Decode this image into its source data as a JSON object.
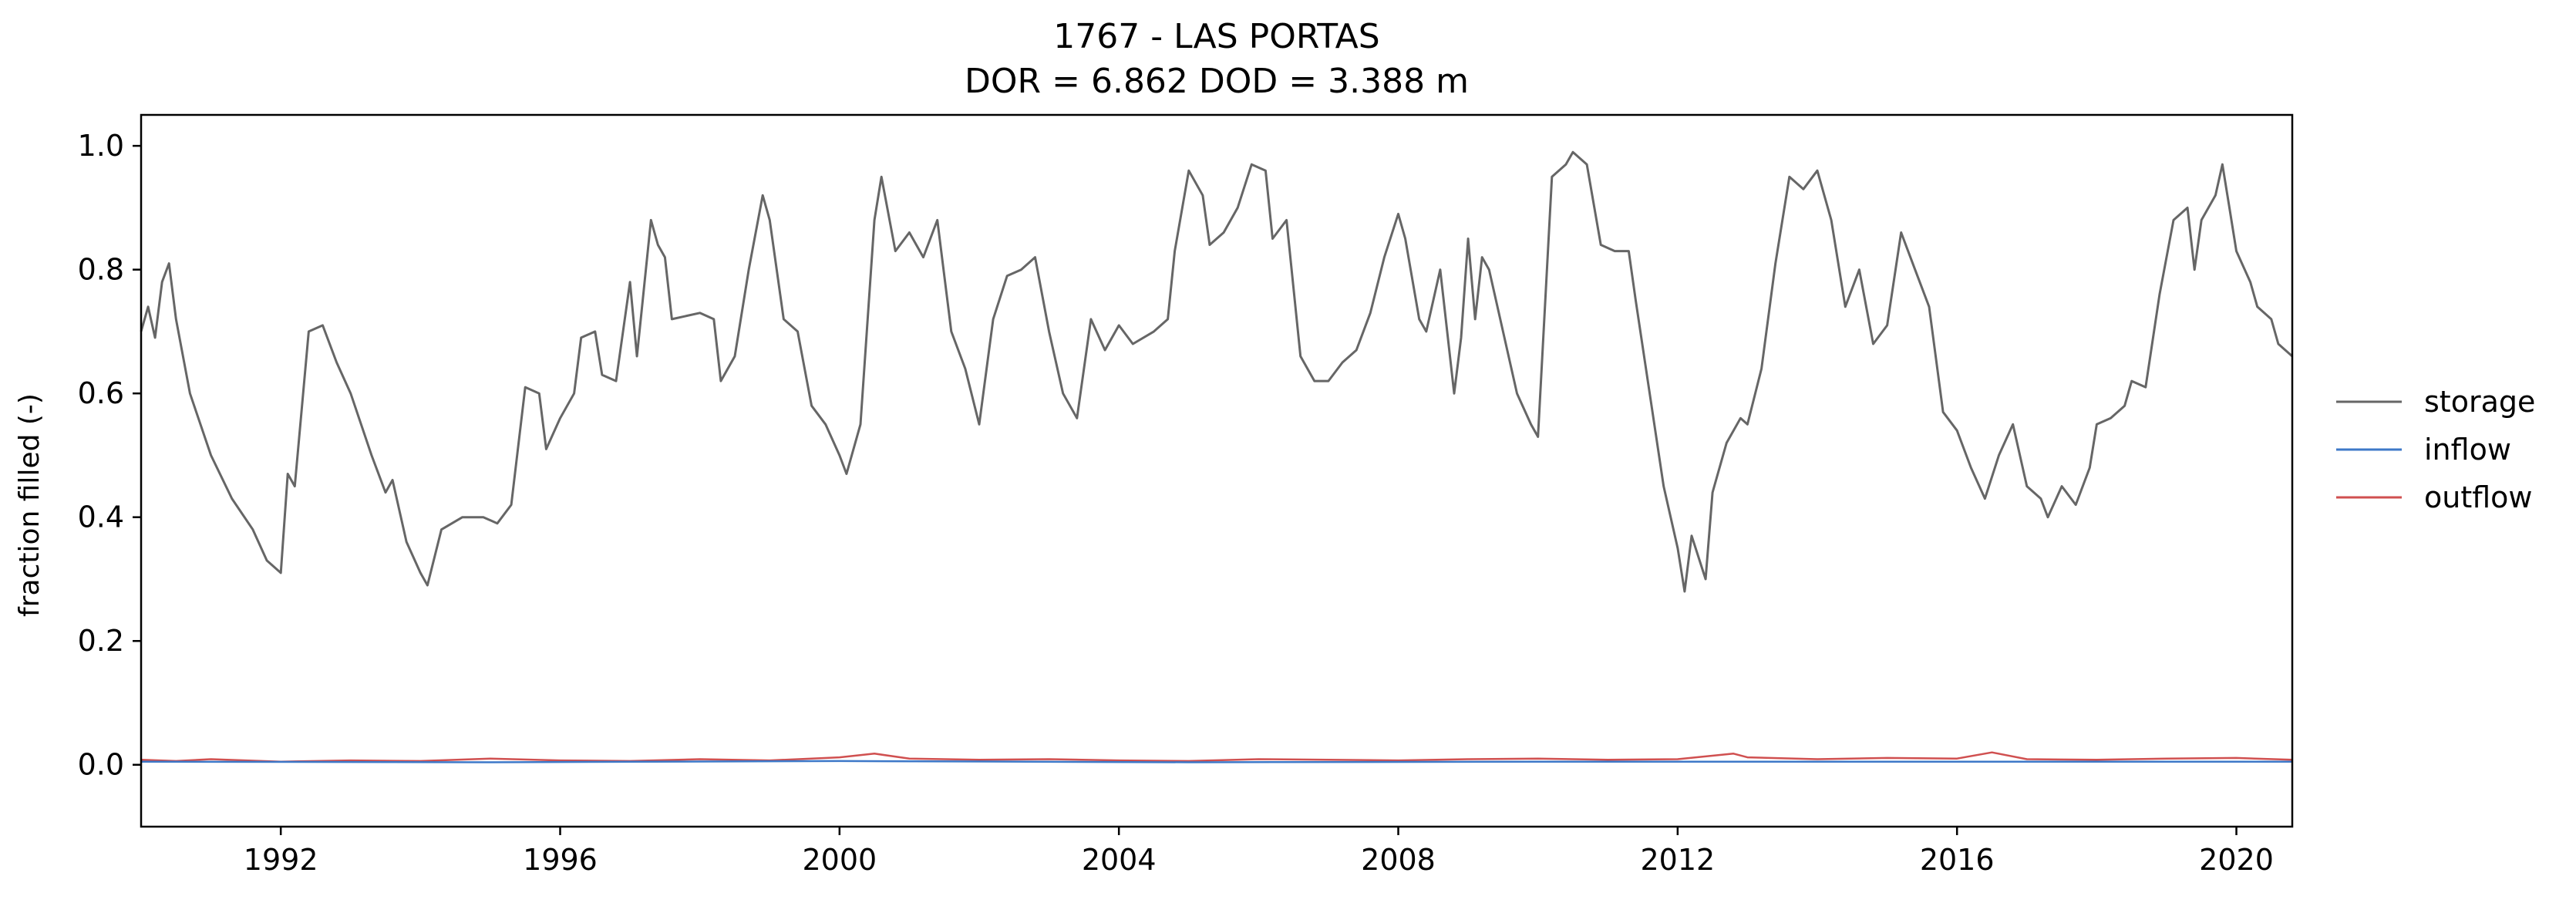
{
  "chart_data": {
    "type": "line",
    "title": "1767 - LAS PORTAS",
    "subtitle": "DOR = 6.862  DOD = 3.388 m",
    "ylabel": "fraction filled (-)",
    "xlabel": "",
    "xlim": [
      1990.0,
      2020.8
    ],
    "ylim": [
      -0.1,
      1.05
    ],
    "x_ticks": [
      "1992",
      "1996",
      "2000",
      "2004",
      "2008",
      "2012",
      "2016",
      "2020"
    ],
    "y_ticks": [
      "0.0",
      "0.2",
      "0.4",
      "0.6",
      "0.8",
      "1.0"
    ],
    "grid": false,
    "legend_position": "right",
    "series": [
      {
        "name": "storage",
        "color": "#666666",
        "points": [
          [
            1990.0,
            0.7
          ],
          [
            1990.1,
            0.74
          ],
          [
            1990.2,
            0.69
          ],
          [
            1990.3,
            0.78
          ],
          [
            1990.4,
            0.81
          ],
          [
            1990.5,
            0.72
          ],
          [
            1990.7,
            0.6
          ],
          [
            1991.0,
            0.5
          ],
          [
            1991.3,
            0.43
          ],
          [
            1991.6,
            0.38
          ],
          [
            1991.8,
            0.33
          ],
          [
            1992.0,
            0.31
          ],
          [
            1992.1,
            0.47
          ],
          [
            1992.2,
            0.45
          ],
          [
            1992.4,
            0.7
          ],
          [
            1992.6,
            0.71
          ],
          [
            1992.8,
            0.65
          ],
          [
            1993.0,
            0.6
          ],
          [
            1993.3,
            0.5
          ],
          [
            1993.5,
            0.44
          ],
          [
            1993.6,
            0.46
          ],
          [
            1993.8,
            0.36
          ],
          [
            1994.0,
            0.31
          ],
          [
            1994.1,
            0.29
          ],
          [
            1994.3,
            0.38
          ],
          [
            1994.6,
            0.4
          ],
          [
            1994.9,
            0.4
          ],
          [
            1995.1,
            0.39
          ],
          [
            1995.3,
            0.42
          ],
          [
            1995.5,
            0.61
          ],
          [
            1995.7,
            0.6
          ],
          [
            1995.8,
            0.51
          ],
          [
            1996.0,
            0.56
          ],
          [
            1996.2,
            0.6
          ],
          [
            1996.3,
            0.69
          ],
          [
            1996.5,
            0.7
          ],
          [
            1996.6,
            0.63
          ],
          [
            1996.8,
            0.62
          ],
          [
            1997.0,
            0.78
          ],
          [
            1997.1,
            0.66
          ],
          [
            1997.3,
            0.88
          ],
          [
            1997.4,
            0.84
          ],
          [
            1997.5,
            0.82
          ],
          [
            1997.6,
            0.72
          ],
          [
            1998.0,
            0.73
          ],
          [
            1998.2,
            0.72
          ],
          [
            1998.3,
            0.62
          ],
          [
            1998.5,
            0.66
          ],
          [
            1998.7,
            0.8
          ],
          [
            1998.9,
            0.92
          ],
          [
            1999.0,
            0.88
          ],
          [
            1999.2,
            0.72
          ],
          [
            1999.4,
            0.7
          ],
          [
            1999.6,
            0.58
          ],
          [
            1999.8,
            0.55
          ],
          [
            2000.0,
            0.5
          ],
          [
            2000.1,
            0.47
          ],
          [
            2000.3,
            0.55
          ],
          [
            2000.5,
            0.88
          ],
          [
            2000.6,
            0.95
          ],
          [
            2000.8,
            0.83
          ],
          [
            2001.0,
            0.86
          ],
          [
            2001.2,
            0.82
          ],
          [
            2001.4,
            0.88
          ],
          [
            2001.6,
            0.7
          ],
          [
            2001.8,
            0.64
          ],
          [
            2002.0,
            0.55
          ],
          [
            2002.2,
            0.72
          ],
          [
            2002.4,
            0.79
          ],
          [
            2002.6,
            0.8
          ],
          [
            2002.8,
            0.82
          ],
          [
            2003.0,
            0.7
          ],
          [
            2003.2,
            0.6
          ],
          [
            2003.4,
            0.56
          ],
          [
            2003.6,
            0.72
          ],
          [
            2003.8,
            0.67
          ],
          [
            2004.0,
            0.71
          ],
          [
            2004.2,
            0.68
          ],
          [
            2004.5,
            0.7
          ],
          [
            2004.7,
            0.72
          ],
          [
            2004.8,
            0.83
          ],
          [
            2005.0,
            0.96
          ],
          [
            2005.2,
            0.92
          ],
          [
            2005.3,
            0.84
          ],
          [
            2005.5,
            0.86
          ],
          [
            2005.7,
            0.9
          ],
          [
            2005.9,
            0.97
          ],
          [
            2006.1,
            0.96
          ],
          [
            2006.2,
            0.85
          ],
          [
            2006.4,
            0.88
          ],
          [
            2006.6,
            0.66
          ],
          [
            2006.8,
            0.62
          ],
          [
            2007.0,
            0.62
          ],
          [
            2007.2,
            0.65
          ],
          [
            2007.4,
            0.67
          ],
          [
            2007.6,
            0.73
          ],
          [
            2007.8,
            0.82
          ],
          [
            2008.0,
            0.89
          ],
          [
            2008.1,
            0.85
          ],
          [
            2008.3,
            0.72
          ],
          [
            2008.4,
            0.7
          ],
          [
            2008.6,
            0.8
          ],
          [
            2008.8,
            0.6
          ],
          [
            2008.9,
            0.69
          ],
          [
            2009.0,
            0.85
          ],
          [
            2009.1,
            0.72
          ],
          [
            2009.2,
            0.82
          ],
          [
            2009.3,
            0.8
          ],
          [
            2009.5,
            0.7
          ],
          [
            2009.7,
            0.6
          ],
          [
            2009.9,
            0.55
          ],
          [
            2010.0,
            0.53
          ],
          [
            2010.2,
            0.95
          ],
          [
            2010.4,
            0.97
          ],
          [
            2010.5,
            0.99
          ],
          [
            2010.7,
            0.97
          ],
          [
            2010.9,
            0.84
          ],
          [
            2011.1,
            0.83
          ],
          [
            2011.3,
            0.83
          ],
          [
            2011.4,
            0.75
          ],
          [
            2011.6,
            0.6
          ],
          [
            2011.8,
            0.45
          ],
          [
            2012.0,
            0.35
          ],
          [
            2012.1,
            0.28
          ],
          [
            2012.2,
            0.37
          ],
          [
            2012.4,
            0.3
          ],
          [
            2012.5,
            0.44
          ],
          [
            2012.7,
            0.52
          ],
          [
            2012.9,
            0.56
          ],
          [
            2013.0,
            0.55
          ],
          [
            2013.2,
            0.64
          ],
          [
            2013.4,
            0.81
          ],
          [
            2013.6,
            0.95
          ],
          [
            2013.8,
            0.93
          ],
          [
            2014.0,
            0.96
          ],
          [
            2014.2,
            0.88
          ],
          [
            2014.4,
            0.74
          ],
          [
            2014.6,
            0.8
          ],
          [
            2014.8,
            0.68
          ],
          [
            2015.0,
            0.71
          ],
          [
            2015.2,
            0.86
          ],
          [
            2015.4,
            0.8
          ],
          [
            2015.6,
            0.74
          ],
          [
            2015.8,
            0.57
          ],
          [
            2016.0,
            0.54
          ],
          [
            2016.2,
            0.48
          ],
          [
            2016.4,
            0.43
          ],
          [
            2016.6,
            0.5
          ],
          [
            2016.8,
            0.55
          ],
          [
            2017.0,
            0.45
          ],
          [
            2017.2,
            0.43
          ],
          [
            2017.3,
            0.4
          ],
          [
            2017.5,
            0.45
          ],
          [
            2017.7,
            0.42
          ],
          [
            2017.9,
            0.48
          ],
          [
            2018.0,
            0.55
          ],
          [
            2018.2,
            0.56
          ],
          [
            2018.4,
            0.58
          ],
          [
            2018.5,
            0.62
          ],
          [
            2018.7,
            0.61
          ],
          [
            2018.9,
            0.76
          ],
          [
            2019.1,
            0.88
          ],
          [
            2019.3,
            0.9
          ],
          [
            2019.4,
            0.8
          ],
          [
            2019.5,
            0.88
          ],
          [
            2019.7,
            0.92
          ],
          [
            2019.8,
            0.97
          ],
          [
            2019.9,
            0.9
          ],
          [
            2020.0,
            0.83
          ],
          [
            2020.2,
            0.78
          ],
          [
            2020.3,
            0.74
          ],
          [
            2020.5,
            0.72
          ],
          [
            2020.6,
            0.68
          ],
          [
            2020.8,
            0.66
          ]
        ]
      },
      {
        "name": "inflow",
        "color": "#3d78c8",
        "points": [
          [
            1990.0,
            0.005
          ],
          [
            1995.0,
            0.004
          ],
          [
            2000.0,
            0.006
          ],
          [
            2005.0,
            0.004
          ],
          [
            2010.0,
            0.005
          ],
          [
            2015.0,
            0.005
          ],
          [
            2020.8,
            0.005
          ]
        ]
      },
      {
        "name": "outflow",
        "color": "#d05050",
        "points": [
          [
            1990.0,
            0.008
          ],
          [
            1990.5,
            0.006
          ],
          [
            1991.0,
            0.009
          ],
          [
            1992.0,
            0.005
          ],
          [
            1993.0,
            0.007
          ],
          [
            1994.0,
            0.006
          ],
          [
            1995.0,
            0.01
          ],
          [
            1996.0,
            0.007
          ],
          [
            1997.0,
            0.006
          ],
          [
            1998.0,
            0.009
          ],
          [
            1999.0,
            0.007
          ],
          [
            2000.0,
            0.012
          ],
          [
            2000.5,
            0.018
          ],
          [
            2001.0,
            0.01
          ],
          [
            2002.0,
            0.008
          ],
          [
            2003.0,
            0.009
          ],
          [
            2004.0,
            0.007
          ],
          [
            2005.0,
            0.006
          ],
          [
            2006.0,
            0.009
          ],
          [
            2007.0,
            0.008
          ],
          [
            2008.0,
            0.007
          ],
          [
            2009.0,
            0.009
          ],
          [
            2010.0,
            0.01
          ],
          [
            2011.0,
            0.008
          ],
          [
            2012.0,
            0.009
          ],
          [
            2012.8,
            0.018
          ],
          [
            2013.0,
            0.012
          ],
          [
            2014.0,
            0.009
          ],
          [
            2015.0,
            0.011
          ],
          [
            2016.0,
            0.01
          ],
          [
            2016.5,
            0.02
          ],
          [
            2017.0,
            0.009
          ],
          [
            2018.0,
            0.008
          ],
          [
            2019.0,
            0.01
          ],
          [
            2020.0,
            0.011
          ],
          [
            2020.8,
            0.008
          ]
        ]
      }
    ]
  }
}
